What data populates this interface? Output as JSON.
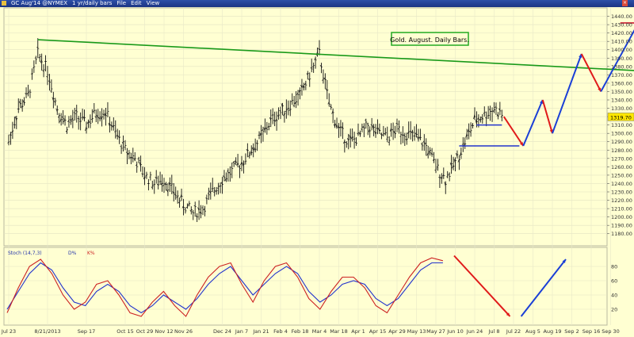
{
  "window": {
    "symbol": "GC Aug'14 @NYMEX",
    "period": "1 yr/daily bars",
    "menu": [
      "File",
      "Edit",
      "View"
    ]
  },
  "chart_data": {
    "type": "ohlc",
    "title": "Gold. August. Daily Bars.",
    "ylim": [
      1175,
      1450
    ],
    "yticks": [
      1180,
      1190,
      1200,
      1210,
      1220,
      1230,
      1240,
      1250,
      1260,
      1270,
      1280,
      1290,
      1300,
      1310,
      1320,
      1330,
      1340,
      1350,
      1360,
      1370,
      1380,
      1390,
      1400,
      1410,
      1420,
      1430,
      1440
    ],
    "last_price": "1319.70",
    "x_labels": [
      "Jul 23",
      "8/21/2013",
      "Sep 17",
      "Oct 15",
      "Oct 29",
      "Nov 12",
      "Nov 26",
      "Dec 24",
      "Jan 7",
      "Jan 21",
      "Feb 4",
      "Feb 18",
      "Mar 4",
      "Mar 18",
      "Apr 1",
      "Apr 15",
      "Apr 29",
      "May 13",
      "May 27",
      "Jun 10",
      "Jun 24",
      "Jul 8",
      "Jul 22",
      "Aug 5",
      "Aug 19",
      "Sep 2",
      "Sep 16",
      "Sep 30"
    ],
    "x_label_weeks": [
      0,
      4,
      8,
      12,
      14,
      16,
      18,
      22,
      24,
      26,
      28,
      30,
      32,
      34,
      36,
      38,
      40,
      42,
      44,
      46,
      48,
      50,
      52,
      54,
      56,
      58,
      60,
      62
    ],
    "closes": [
      [
        0,
        1290
      ],
      [
        1,
        1330
      ],
      [
        2,
        1345
      ],
      [
        3,
        1395
      ],
      [
        4,
        1375
      ],
      [
        5,
        1330
      ],
      [
        6,
        1310
      ],
      [
        7,
        1320
      ],
      [
        8,
        1310
      ],
      [
        9,
        1325
      ],
      [
        10,
        1325
      ],
      [
        11,
        1300
      ],
      [
        12,
        1280
      ],
      [
        13,
        1270
      ],
      [
        14,
        1250
      ],
      [
        15,
        1240
      ],
      [
        16,
        1245
      ],
      [
        17,
        1230
      ],
      [
        18,
        1215
      ],
      [
        19,
        1205
      ],
      [
        20,
        1210
      ],
      [
        21,
        1230
      ],
      [
        22,
        1245
      ],
      [
        23,
        1255
      ],
      [
        24,
        1265
      ],
      [
        25,
        1280
      ],
      [
        26,
        1295
      ],
      [
        27,
        1315
      ],
      [
        28,
        1325
      ],
      [
        29,
        1335
      ],
      [
        30,
        1345
      ],
      [
        31,
        1370
      ],
      [
        32,
        1395
      ],
      [
        33,
        1335
      ],
      [
        34,
        1305
      ],
      [
        35,
        1290
      ],
      [
        36,
        1295
      ],
      [
        37,
        1310
      ],
      [
        38,
        1300
      ],
      [
        39,
        1295
      ],
      [
        40,
        1305
      ],
      [
        41,
        1300
      ],
      [
        42,
        1295
      ],
      [
        43,
        1285
      ],
      [
        44,
        1260
      ],
      [
        45,
        1245
      ],
      [
        46,
        1265
      ],
      [
        47,
        1290
      ],
      [
        48,
        1315
      ],
      [
        49,
        1322
      ],
      [
        50,
        1330
      ],
      [
        51,
        1320
      ]
    ],
    "lines": {
      "resistance_trendline": [
        [
          1412,
          3
        ],
        [
          1370,
          73
        ]
      ],
      "support_1": 1310,
      "support_2": 1285
    },
    "projection_path": [
      {
        "price": 1320,
        "week": 51,
        "color": "red"
      },
      {
        "price": 1285,
        "week": 53,
        "color": "red"
      },
      {
        "price": 1340,
        "week": 55,
        "color": "blue"
      },
      {
        "price": 1300,
        "week": 56,
        "color": "red"
      },
      {
        "price": 1395,
        "week": 59,
        "color": "blue"
      },
      {
        "price": 1350,
        "week": 61,
        "color": "red"
      },
      {
        "price": 1435,
        "week": 65,
        "color": "blue"
      }
    ],
    "target_line": 1432,
    "indicator": {
      "label": "Stoch (14,7,3)",
      "ylim": [
        0,
        100
      ],
      "yticks": [
        20,
        40,
        60,
        80
      ],
      "series": [
        {
          "name": "D%",
          "color": "#2233cc",
          "values": [
            [
              0,
              20
            ],
            [
              1,
              45
            ],
            [
              2,
              70
            ],
            [
              3,
              85
            ],
            [
              4,
              75
            ],
            [
              5,
              50
            ],
            [
              6,
              30
            ],
            [
              7,
              25
            ],
            [
              8,
              45
            ],
            [
              9,
              55
            ],
            [
              10,
              45
            ],
            [
              11,
              25
            ],
            [
              12,
              15
            ],
            [
              13,
              25
            ],
            [
              14,
              40
            ],
            [
              15,
              30
            ],
            [
              16,
              20
            ],
            [
              17,
              35
            ],
            [
              18,
              55
            ],
            [
              19,
              70
            ],
            [
              20,
              80
            ],
            [
              21,
              60
            ],
            [
              22,
              40
            ],
            [
              23,
              55
            ],
            [
              24,
              70
            ],
            [
              25,
              80
            ],
            [
              26,
              70
            ],
            [
              27,
              45
            ],
            [
              28,
              30
            ],
            [
              29,
              40
            ],
            [
              30,
              55
            ],
            [
              31,
              60
            ],
            [
              32,
              55
            ],
            [
              33,
              35
            ],
            [
              34,
              25
            ],
            [
              35,
              35
            ],
            [
              36,
              55
            ],
            [
              37,
              75
            ],
            [
              38,
              85
            ],
            [
              39,
              85
            ]
          ]
        },
        {
          "name": "K%",
          "color": "#cc2222",
          "values": [
            [
              0,
              15
            ],
            [
              1,
              50
            ],
            [
              2,
              80
            ],
            [
              3,
              90
            ],
            [
              4,
              70
            ],
            [
              5,
              40
            ],
            [
              6,
              20
            ],
            [
              7,
              30
            ],
            [
              8,
              55
            ],
            [
              9,
              60
            ],
            [
              10,
              40
            ],
            [
              11,
              15
            ],
            [
              12,
              10
            ],
            [
              13,
              30
            ],
            [
              14,
              45
            ],
            [
              15,
              25
            ],
            [
              16,
              10
            ],
            [
              17,
              40
            ],
            [
              18,
              65
            ],
            [
              19,
              80
            ],
            [
              20,
              85
            ],
            [
              21,
              55
            ],
            [
              22,
              30
            ],
            [
              23,
              60
            ],
            [
              24,
              80
            ],
            [
              25,
              85
            ],
            [
              26,
              65
            ],
            [
              27,
              35
            ],
            [
              28,
              20
            ],
            [
              29,
              45
            ],
            [
              30,
              65
            ],
            [
              31,
              65
            ],
            [
              32,
              50
            ],
            [
              33,
              25
            ],
            [
              34,
              15
            ],
            [
              35,
              40
            ],
            [
              36,
              65
            ],
            [
              37,
              85
            ],
            [
              38,
              92
            ],
            [
              39,
              88
            ]
          ]
        }
      ],
      "projection": [
        {
          "from": [
            40,
            95
          ],
          "to": [
            45,
            10
          ],
          "color": "red"
        },
        {
          "from": [
            46,
            10
          ],
          "to": [
            50,
            90
          ],
          "color": "blue"
        }
      ]
    }
  }
}
